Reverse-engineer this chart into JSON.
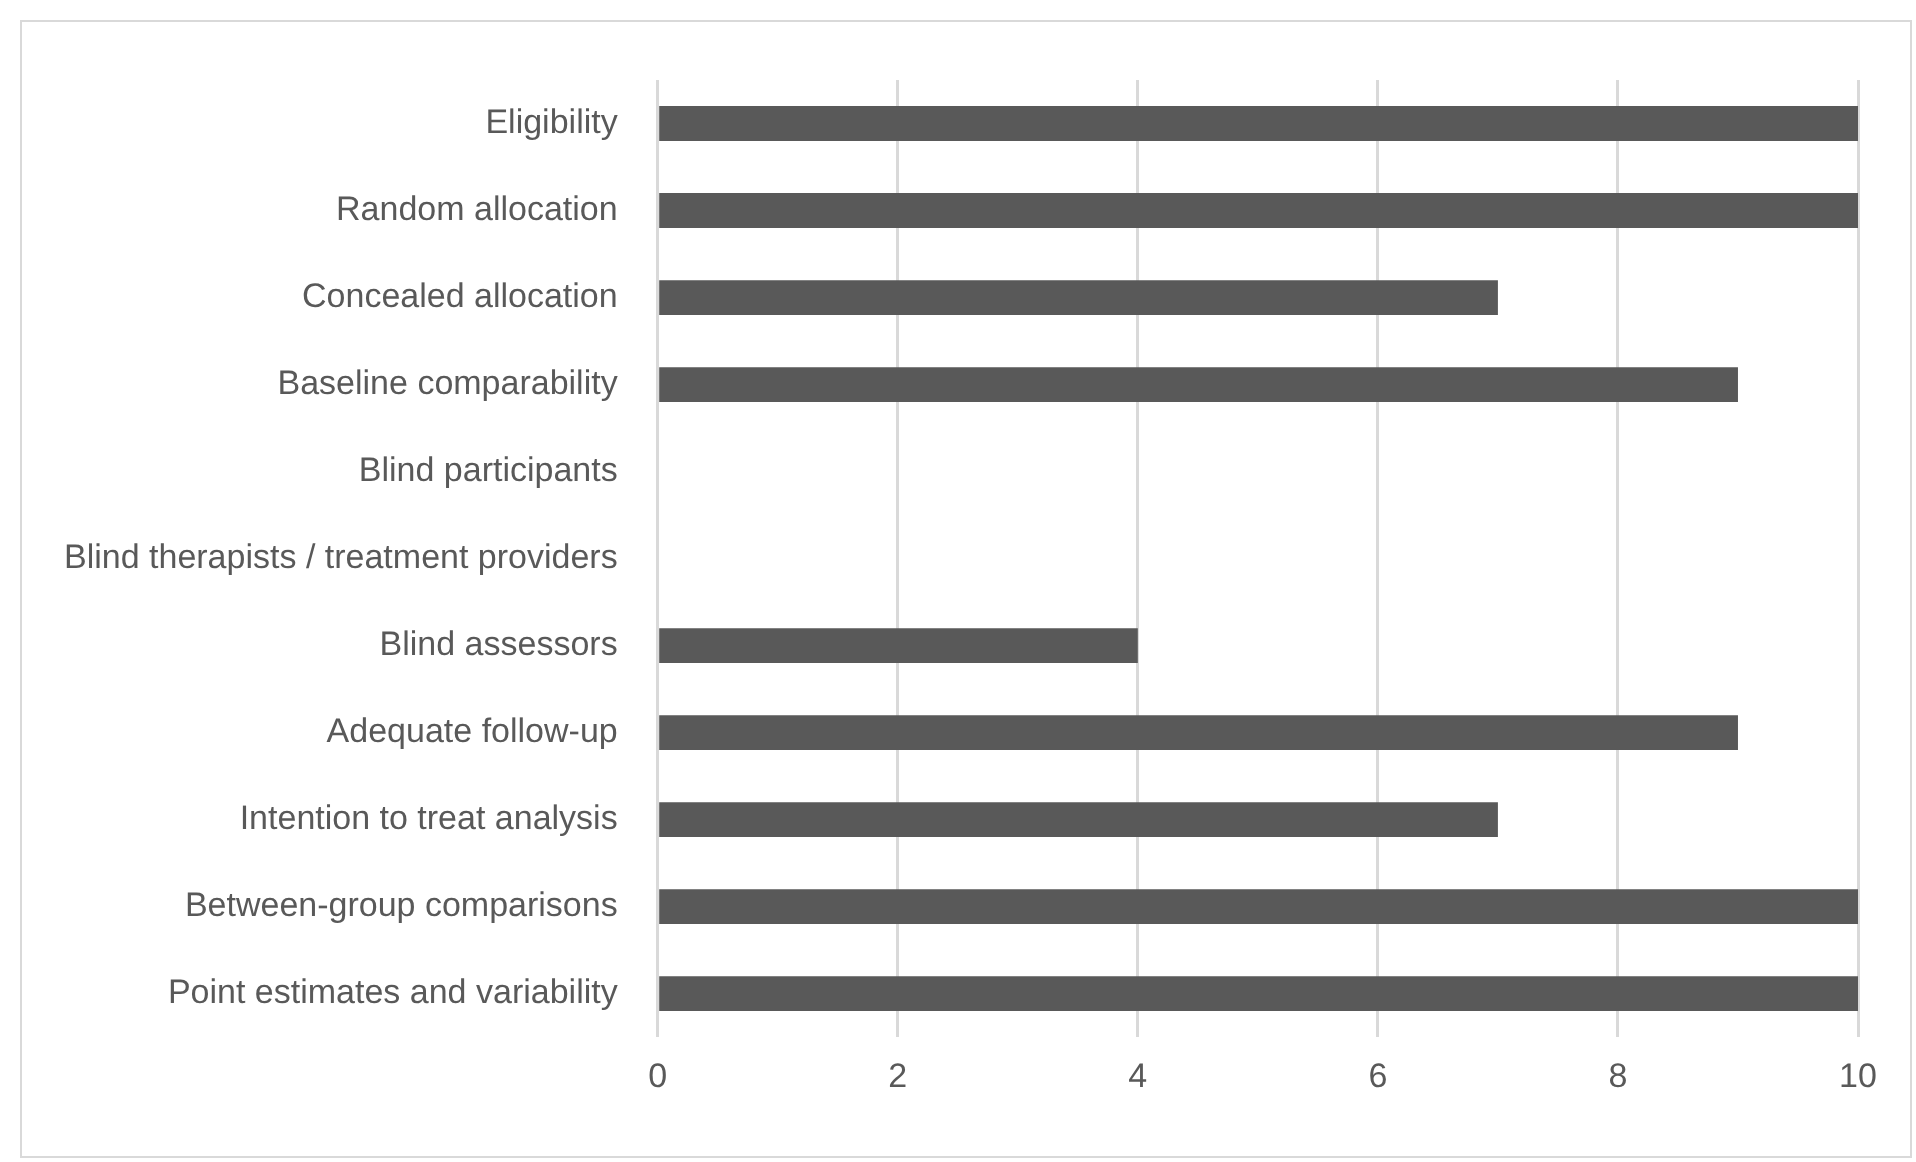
{
  "chart_data": {
    "type": "bar",
    "orientation": "horizontal",
    "categories": [
      "Eligibility",
      "Random allocation",
      "Concealed allocation",
      "Baseline comparability",
      "Blind participants",
      "Blind therapists / treatment providers",
      "Blind assessors",
      "Adequate follow-up",
      "Intention to treat analysis",
      "Between-group comparisons",
      "Point estimates and variability"
    ],
    "values": [
      10,
      10,
      7,
      9,
      0,
      0,
      4,
      9,
      7,
      10,
      10
    ],
    "color": "#595959",
    "xlim": [
      0,
      10
    ],
    "xticks": [
      0,
      2,
      4,
      6,
      8,
      10
    ],
    "grid": "x",
    "legend": false
  }
}
